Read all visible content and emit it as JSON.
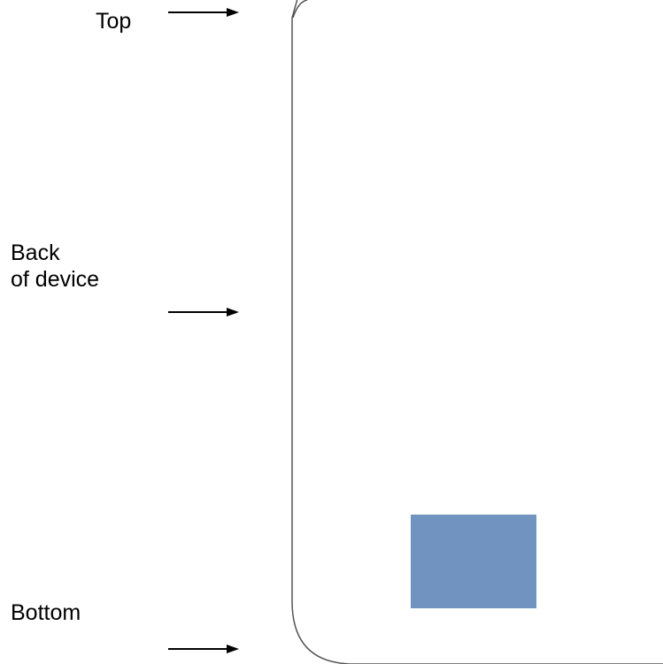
{
  "labels": {
    "top": "Top",
    "back": "Back\nof device",
    "bottom": "Bottom"
  },
  "colors": {
    "outline": "#555555",
    "arrow": "#000000",
    "camera_block": "#7193bf"
  }
}
